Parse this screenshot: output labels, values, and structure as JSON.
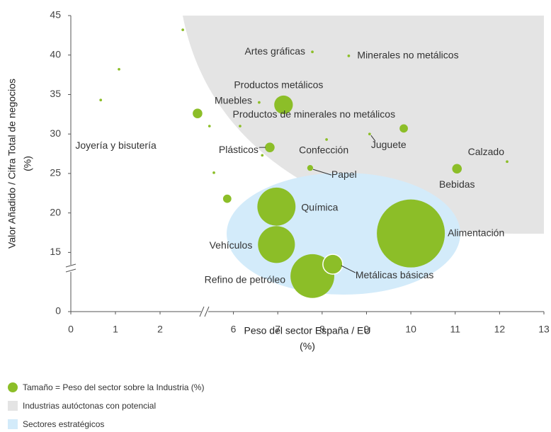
{
  "chart_data": {
    "type": "bubble",
    "xlabel": [
      "Peso del sector España / EU",
      "(%)"
    ],
    "ylabel": [
      "Valor Añadido / Cifra Total de negocios",
      "(%)"
    ],
    "xlim": [
      0,
      13
    ],
    "xbreak": [
      3,
      5.4
    ],
    "ylim": [
      0,
      45
    ],
    "ybreak": [
      10,
      11
    ],
    "xticks": [
      0,
      1,
      2,
      6,
      7,
      8,
      9,
      10,
      11,
      12,
      13
    ],
    "yticks": [
      0,
      15,
      20,
      25,
      30,
      35,
      40,
      45
    ],
    "color": "#8cbe28",
    "series": [
      {
        "labels": [
          null,
          null,
          null,
          null,
          "Joyería y bisutería",
          null,
          null,
          null,
          "Muebles",
          null,
          "Plásticos",
          "Productos metálicos",
          "Artes gráficas",
          "Confección",
          "Minerales no metálicos",
          "Papel",
          "Juguete",
          "Productos de minerales no metálicos",
          "Bebidas",
          "Calzado",
          "Química",
          "Vehículos",
          "Refino de petróleo",
          "Metálicas básicas",
          "Alimentación"
        ],
        "x": [
          0.67,
          1.08,
          2.51,
          2.84,
          5.46,
          5.56,
          5.86,
          6.15,
          6.58,
          6.65,
          6.82,
          7.13,
          7.78,
          8.1,
          8.6,
          7.73,
          9.07,
          9.84,
          11.04,
          12.17,
          6.97,
          6.97,
          7.78,
          8.24,
          10.0
        ],
        "values": [
          34.3,
          38.2,
          43.2,
          32.6,
          31.0,
          25.1,
          21.8,
          31.0,
          34.0,
          27.3,
          28.3,
          33.7,
          40.4,
          29.3,
          39.9,
          25.7,
          30.0,
          30.7,
          25.6,
          26.5,
          20.8,
          16.0,
          12.0,
          13.5,
          17.4
        ],
        "sizes": [
          0.03,
          0.03,
          0.03,
          0.4,
          0.03,
          0.03,
          0.3,
          0.03,
          0.03,
          0.03,
          0.4,
          1.5,
          0.03,
          0.03,
          0.03,
          0.15,
          0.03,
          0.3,
          0.4,
          0.03,
          6.3,
          5.9,
          8.3,
          1.7,
          20
        ]
      }
    ],
    "legend": [
      "Tamaño = Peso del sector sobre la Industria (%)",
      "Industrias autóctonas con potencial",
      "Sectores estratégicos"
    ]
  }
}
